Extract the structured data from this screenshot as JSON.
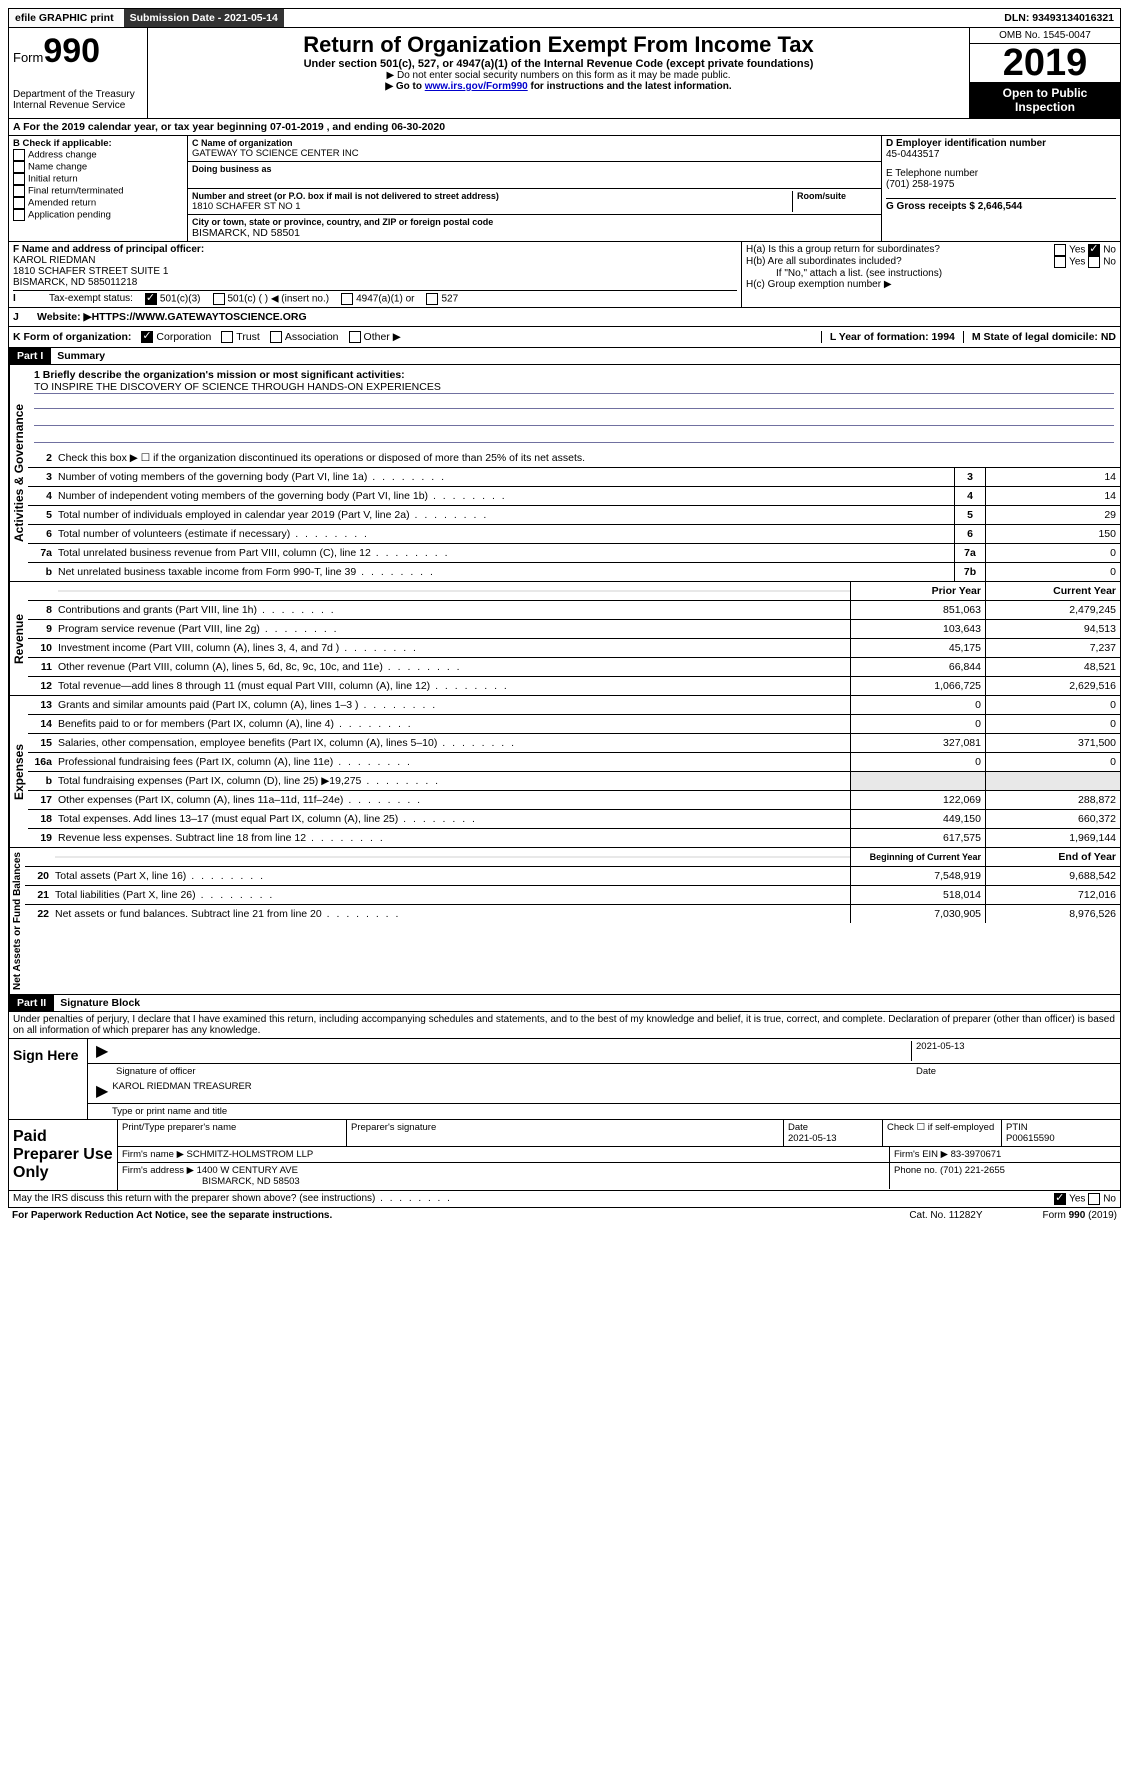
{
  "top": {
    "efile": "efile GRAPHIC print",
    "submission": "Submission Date - 2021-05-14",
    "dln": "DLN: 93493134016321"
  },
  "header": {
    "form_prefix": "Form",
    "form_num": "990",
    "dept": "Department of the Treasury\nInternal Revenue Service",
    "title": "Return of Organization Exempt From Income Tax",
    "subtitle": "Under section 501(c), 527, or 4947(a)(1) of the Internal Revenue Code (except private foundations)",
    "line1": "▶ Do not enter social security numbers on this form as it may be made public.",
    "line2_pre": "▶ Go to ",
    "line2_link": "www.irs.gov/Form990",
    "line2_post": " for instructions and the latest information.",
    "omb": "OMB No. 1545-0047",
    "year": "2019",
    "open": "Open to Public Inspection"
  },
  "period": "A For the 2019 calendar year, or tax year beginning 07-01-2019    , and ending 06-30-2020",
  "box_b": {
    "title": "B Check if applicable:",
    "items": [
      "Address change",
      "Name change",
      "Initial return",
      "Final return/terminated",
      "Amended return",
      "Application pending"
    ]
  },
  "box_c": {
    "name_lbl": "C Name of organization",
    "name": "GATEWAY TO SCIENCE CENTER INC",
    "dba_lbl": "Doing business as",
    "addr_lbl": "Number and street (or P.O. box if mail is not delivered to street address)",
    "room_lbl": "Room/suite",
    "addr": "1810 SCHAFER ST NO 1",
    "city_lbl": "City or town, state or province, country, and ZIP or foreign postal code",
    "city": "BISMARCK, ND  58501"
  },
  "box_d": {
    "ein_lbl": "D Employer identification number",
    "ein": "45-0443517",
    "tel_lbl": "E Telephone number",
    "tel": "(701) 258-1975",
    "gross_lbl": "G Gross receipts $ 2,646,544"
  },
  "box_f": {
    "lbl": "F  Name and address of principal officer:",
    "name": "KAROL RIEDMAN",
    "addr": "1810 SCHAFER STREET SUITE 1\nBISMARCK, ND  585011218"
  },
  "box_h": {
    "a": "H(a)  Is this a group return for subordinates?",
    "b": "H(b)  Are all subordinates included?",
    "b_note": "If \"No,\" attach a list. (see instructions)",
    "c": "H(c)  Group exemption number ▶"
  },
  "tax_status": {
    "lbl": "Tax-exempt status:",
    "opts": [
      "501(c)(3)",
      "501(c) (   ) ◀ (insert no.)",
      "4947(a)(1) or",
      "527"
    ]
  },
  "website": {
    "lbl": "Website: ▶",
    "val": "  HTTPS://WWW.GATEWAYTOSCIENCE.ORG"
  },
  "row_k": {
    "lbl": "K Form of organization:",
    "opts": [
      "Corporation",
      "Trust",
      "Association",
      "Other ▶"
    ],
    "l": "L Year of formation: 1994",
    "m": "M State of legal domicile: ND"
  },
  "part1": {
    "hdr": "Part I",
    "title": "Summary"
  },
  "mission": {
    "lbl": "1  Briefly describe the organization's mission or most significant activities:",
    "text": "TO INSPIRE THE DISCOVERY OF SCIENCE THROUGH HANDS-ON EXPERIENCES"
  },
  "gov_lines": [
    {
      "n": "2",
      "t": "Check this box ▶ ☐  if the organization discontinued its operations or disposed of more than 25% of its net assets."
    },
    {
      "n": "3",
      "t": "Number of voting members of the governing body (Part VI, line 1a)",
      "box": "3",
      "v": "14"
    },
    {
      "n": "4",
      "t": "Number of independent voting members of the governing body (Part VI, line 1b)",
      "box": "4",
      "v": "14"
    },
    {
      "n": "5",
      "t": "Total number of individuals employed in calendar year 2019 (Part V, line 2a)",
      "box": "5",
      "v": "29"
    },
    {
      "n": "6",
      "t": "Total number of volunteers (estimate if necessary)",
      "box": "6",
      "v": "150"
    },
    {
      "n": "7a",
      "t": "Total unrelated business revenue from Part VIII, column (C), line 12",
      "box": "7a",
      "v": "0"
    },
    {
      "n": "b",
      "t": "Net unrelated business taxable income from Form 990-T, line 39",
      "box": "7b",
      "v": "0"
    }
  ],
  "rev_hdr": {
    "py": "Prior Year",
    "cy": "Current Year"
  },
  "rev_lines": [
    {
      "n": "8",
      "t": "Contributions and grants (Part VIII, line 1h)",
      "py": "851,063",
      "cy": "2,479,245"
    },
    {
      "n": "9",
      "t": "Program service revenue (Part VIII, line 2g)",
      "py": "103,643",
      "cy": "94,513"
    },
    {
      "n": "10",
      "t": "Investment income (Part VIII, column (A), lines 3, 4, and 7d )",
      "py": "45,175",
      "cy": "7,237"
    },
    {
      "n": "11",
      "t": "Other revenue (Part VIII, column (A), lines 5, 6d, 8c, 9c, 10c, and 11e)",
      "py": "66,844",
      "cy": "48,521"
    },
    {
      "n": "12",
      "t": "Total revenue—add lines 8 through 11 (must equal Part VIII, column (A), line 12)",
      "py": "1,066,725",
      "cy": "2,629,516"
    }
  ],
  "exp_lines": [
    {
      "n": "13",
      "t": "Grants and similar amounts paid (Part IX, column (A), lines 1–3 )",
      "py": "0",
      "cy": "0"
    },
    {
      "n": "14",
      "t": "Benefits paid to or for members (Part IX, column (A), line 4)",
      "py": "0",
      "cy": "0"
    },
    {
      "n": "15",
      "t": "Salaries, other compensation, employee benefits (Part IX, column (A), lines 5–10)",
      "py": "327,081",
      "cy": "371,500"
    },
    {
      "n": "16a",
      "t": "Professional fundraising fees (Part IX, column (A), line 11e)",
      "py": "0",
      "cy": "0"
    },
    {
      "n": "b",
      "t": "Total fundraising expenses (Part IX, column (D), line 25) ▶19,275",
      "py": "",
      "cy": "",
      "shade": true
    },
    {
      "n": "17",
      "t": "Other expenses (Part IX, column (A), lines 11a–11d, 11f–24e)",
      "py": "122,069",
      "cy": "288,872"
    },
    {
      "n": "18",
      "t": "Total expenses. Add lines 13–17 (must equal Part IX, column (A), line 25)",
      "py": "449,150",
      "cy": "660,372"
    },
    {
      "n": "19",
      "t": "Revenue less expenses. Subtract line 18 from line 12",
      "py": "617,575",
      "cy": "1,969,144"
    }
  ],
  "na_hdr": {
    "py": "Beginning of Current Year",
    "cy": "End of Year"
  },
  "na_lines": [
    {
      "n": "20",
      "t": "Total assets (Part X, line 16)",
      "py": "7,548,919",
      "cy": "9,688,542"
    },
    {
      "n": "21",
      "t": "Total liabilities (Part X, line 26)",
      "py": "518,014",
      "cy": "712,016"
    },
    {
      "n": "22",
      "t": "Net assets or fund balances. Subtract line 21 from line 20",
      "py": "7,030,905",
      "cy": "8,976,526"
    }
  ],
  "part2": {
    "hdr": "Part II",
    "title": "Signature Block"
  },
  "perjury": "Under penalties of perjury, I declare that I have examined this return, including accompanying schedules and statements, and to the best of my knowledge and belief, it is true, correct, and complete. Declaration of preparer (other than officer) is based on all information of which preparer has any knowledge.",
  "sign": {
    "left": "Sign Here",
    "date": "2021-05-13",
    "sig_lbl": "Signature of officer",
    "date_lbl": "Date",
    "name": "KAROL RIEDMAN  TREASURER",
    "name_lbl": "Type or print name and title"
  },
  "prep": {
    "left": "Paid Preparer Use Only",
    "h1": "Print/Type preparer's name",
    "h2": "Preparer's signature",
    "h3": "Date",
    "date": "2021-05-13",
    "h4": "Check ☐ if self-employed",
    "h5": "PTIN",
    "ptin": "P00615590",
    "firm_lbl": "Firm's name     ▶",
    "firm": "SCHMITZ-HOLMSTROM LLP",
    "ein_lbl": "Firm's EIN ▶",
    "ein": "83-3970671",
    "addr_lbl": "Firm's address ▶",
    "addr": "1400 W CENTURY AVE",
    "addr2": "BISMARCK, ND  58503",
    "phone_lbl": "Phone no.",
    "phone": "(701) 221-2655"
  },
  "discuss": "May the IRS discuss this return with the preparer shown above? (see instructions)",
  "footer": {
    "left": "For Paperwork Reduction Act Notice, see the separate instructions.",
    "mid": "Cat. No. 11282Y",
    "right": "Form 990 (2019)"
  },
  "labels": {
    "gov": "Activities & Governance",
    "rev": "Revenue",
    "exp": "Expenses",
    "na": "Net Assets or Fund Balances"
  },
  "yn": {
    "yes": "Yes",
    "no": "No"
  }
}
